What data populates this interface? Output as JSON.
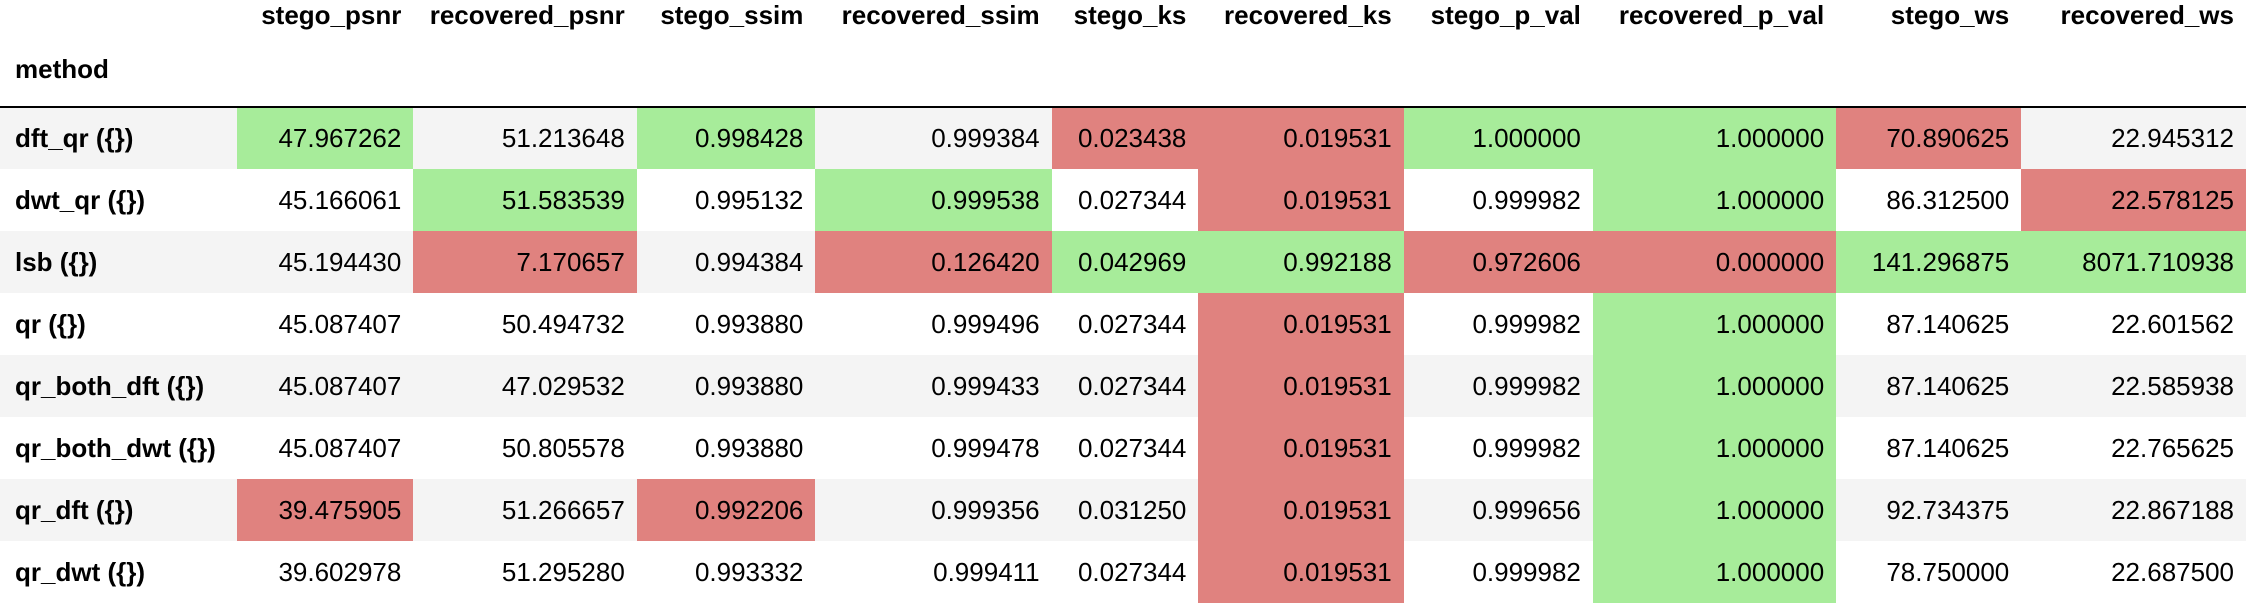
{
  "table": {
    "index_name": "method",
    "columns": [
      "stego_psnr",
      "recovered_psnr",
      "stego_ssim",
      "recovered_ssim",
      "stego_ks",
      "recovered_ks",
      "stego_p_val",
      "recovered_p_val",
      "stego_ws",
      "recovered_ws"
    ],
    "highlight_colors": {
      "max": "#a7ec9a",
      "min": "#e0827f"
    },
    "rows": [
      {
        "method": "dft_qr ({})",
        "values": [
          "47.967262",
          "51.213648",
          "0.998428",
          "0.999384",
          "0.023438",
          "0.019531",
          "1.000000",
          "1.000000",
          "70.890625",
          "22.945312"
        ],
        "highlight": [
          "max",
          "",
          "max",
          "",
          "min",
          "min",
          "max",
          "max",
          "min",
          ""
        ]
      },
      {
        "method": "dwt_qr ({})",
        "values": [
          "45.166061",
          "51.583539",
          "0.995132",
          "0.999538",
          "0.027344",
          "0.019531",
          "0.999982",
          "1.000000",
          "86.312500",
          "22.578125"
        ],
        "highlight": [
          "",
          "max",
          "",
          "max",
          "",
          "min",
          "",
          "max",
          "",
          "min"
        ]
      },
      {
        "method": "lsb ({})",
        "values": [
          "45.194430",
          "7.170657",
          "0.994384",
          "0.126420",
          "0.042969",
          "0.992188",
          "0.972606",
          "0.000000",
          "141.296875",
          "8071.710938"
        ],
        "highlight": [
          "",
          "min",
          "",
          "min",
          "max",
          "max",
          "min",
          "min",
          "max",
          "max"
        ]
      },
      {
        "method": "qr ({})",
        "values": [
          "45.087407",
          "50.494732",
          "0.993880",
          "0.999496",
          "0.027344",
          "0.019531",
          "0.999982",
          "1.000000",
          "87.140625",
          "22.601562"
        ],
        "highlight": [
          "",
          "",
          "",
          "",
          "",
          "min",
          "",
          "max",
          "",
          ""
        ]
      },
      {
        "method": "qr_both_dft ({})",
        "values": [
          "45.087407",
          "47.029532",
          "0.993880",
          "0.999433",
          "0.027344",
          "0.019531",
          "0.999982",
          "1.000000",
          "87.140625",
          "22.585938"
        ],
        "highlight": [
          "",
          "",
          "",
          "",
          "",
          "min",
          "",
          "max",
          "",
          ""
        ]
      },
      {
        "method": "qr_both_dwt ({})",
        "values": [
          "45.087407",
          "50.805578",
          "0.993880",
          "0.999478",
          "0.027344",
          "0.019531",
          "0.999982",
          "1.000000",
          "87.140625",
          "22.765625"
        ],
        "highlight": [
          "",
          "",
          "",
          "",
          "",
          "min",
          "",
          "max",
          "",
          ""
        ]
      },
      {
        "method": "qr_dft ({})",
        "values": [
          "39.475905",
          "51.266657",
          "0.992206",
          "0.999356",
          "0.031250",
          "0.019531",
          "0.999656",
          "1.000000",
          "92.734375",
          "22.867188"
        ],
        "highlight": [
          "min",
          "",
          "min",
          "",
          "",
          "min",
          "",
          "max",
          "",
          ""
        ]
      },
      {
        "method": "qr_dwt ({})",
        "values": [
          "39.602978",
          "51.295280",
          "0.993332",
          "0.999411",
          "0.027344",
          "0.019531",
          "0.999982",
          "1.000000",
          "78.750000",
          "22.687500"
        ],
        "highlight": [
          "",
          "",
          "",
          "",
          "",
          "min",
          "",
          "max",
          "",
          ""
        ]
      }
    ]
  }
}
